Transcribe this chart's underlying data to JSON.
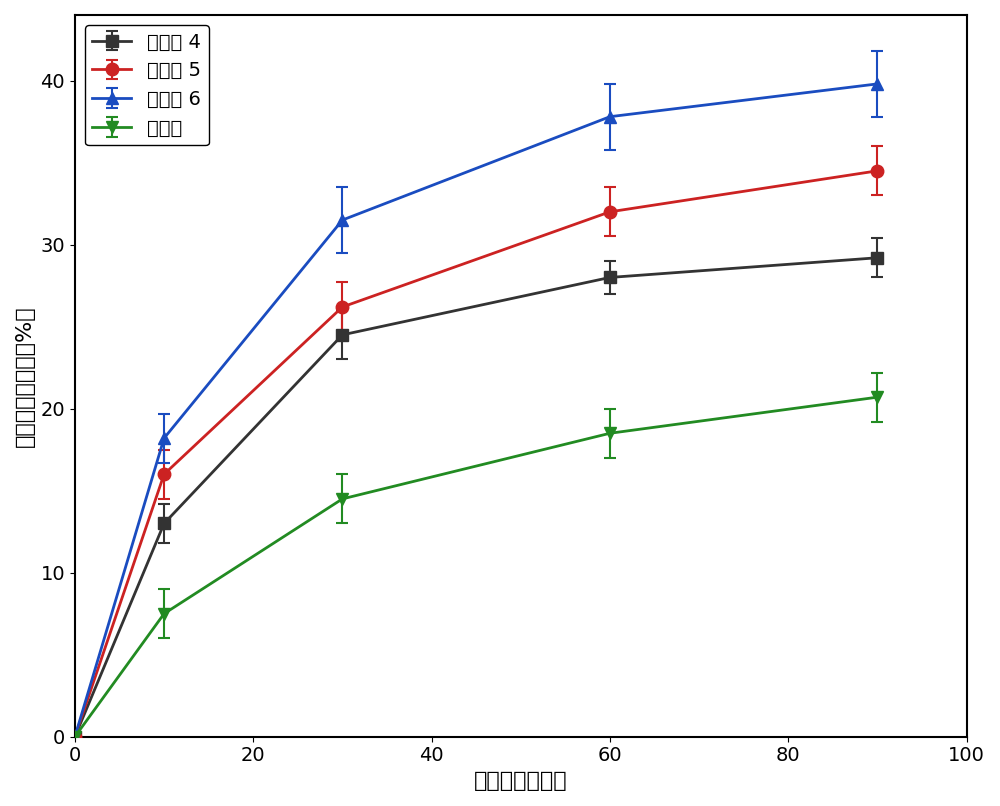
{
  "x": [
    0,
    10,
    30,
    60,
    90
  ],
  "series": [
    {
      "label": "实施例 4",
      "color": "#333333",
      "marker": "s",
      "y": [
        0,
        13.0,
        24.5,
        28.0,
        29.2
      ],
      "yerr": [
        0,
        1.2,
        1.5,
        1.0,
        1.2
      ]
    },
    {
      "label": "实施例 5",
      "color": "#cc2222",
      "marker": "o",
      "y": [
        0,
        16.0,
        26.2,
        32.0,
        34.5
      ],
      "yerr": [
        0,
        1.5,
        1.5,
        1.5,
        1.5
      ]
    },
    {
      "label": "实施例 6",
      "color": "#1a4cc0",
      "marker": "^",
      "y": [
        0,
        18.2,
        31.5,
        37.8,
        39.8
      ],
      "yerr": [
        0,
        1.5,
        2.0,
        2.0,
        2.0
      ]
    },
    {
      "label": "对比例",
      "color": "#228b22",
      "marker": "v",
      "y": [
        0,
        7.5,
        14.5,
        18.5,
        20.7
      ],
      "yerr": [
        0,
        1.5,
        1.5,
        1.5,
        1.5
      ]
    }
  ],
  "xlabel": "种植时间（天）",
  "ylabel": "总石油烃降解率（%）",
  "xlim": [
    0,
    100
  ],
  "ylim": [
    0,
    44
  ],
  "xticks": [
    0,
    20,
    40,
    60,
    80,
    100
  ],
  "yticks": [
    0,
    10,
    20,
    30,
    40
  ],
  "legend_loc": "upper left",
  "title_fontsize": 16,
  "label_fontsize": 16,
  "tick_fontsize": 14,
  "legend_fontsize": 14,
  "linewidth": 2.0,
  "markersize": 9,
  "capsize": 4,
  "background_color": "#ffffff"
}
